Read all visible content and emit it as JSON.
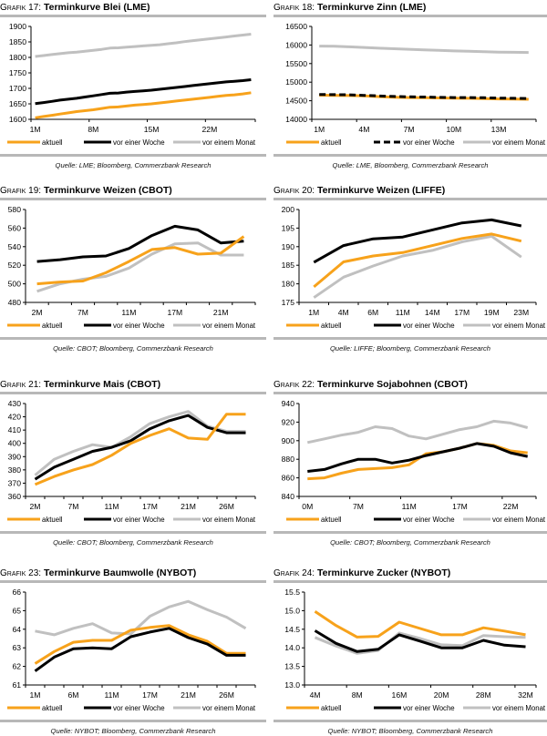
{
  "legend": {
    "aktuell": "aktuell",
    "woche": "vor einer Woche",
    "monat": "vor einem Monat"
  },
  "colors": {
    "aktuell": "#f7a21b",
    "woche": "#000000",
    "monat": "#c0c0c0",
    "rule": "#b8b8b8"
  },
  "chart_data": [
    {
      "id": "g17",
      "type": "line",
      "prefix": "Grafik 17:",
      "title": "Terminkurve Blei (LME)",
      "source": "Quelle: LME; Bloomberg, Commerzbank Research",
      "ylim": [
        1600,
        1900
      ],
      "yticks": [
        1600,
        1650,
        1700,
        1750,
        1800,
        1850,
        1900
      ],
      "n": 27,
      "xtick_labels": [
        {
          "i": 0,
          "label": "1M"
        },
        {
          "i": 7,
          "label": "8M"
        },
        {
          "i": 14,
          "label": "15M"
        },
        {
          "i": 21,
          "label": "22M"
        }
      ],
      "xticks_major_every": 7,
      "series": [
        {
          "key": "monat",
          "name": "vor einem Monat",
          "values": [
            1803,
            1806,
            1809,
            1812,
            1815,
            1817,
            1820,
            1823,
            1826,
            1830,
            1831,
            1833,
            1835,
            1837,
            1839,
            1841,
            1844,
            1847,
            1851,
            1854,
            1857,
            1860,
            1863,
            1866,
            1869,
            1872,
            1875
          ]
        },
        {
          "key": "woche",
          "name": "vor einer Woche",
          "values": [
            1651,
            1654,
            1658,
            1662,
            1665,
            1668,
            1672,
            1676,
            1680,
            1684,
            1685,
            1688,
            1690,
            1692,
            1694,
            1697,
            1700,
            1703,
            1706,
            1709,
            1712,
            1715,
            1718,
            1721,
            1723,
            1725,
            1728
          ]
        },
        {
          "key": "aktuell",
          "name": "aktuell",
          "values": [
            1605,
            1609,
            1613,
            1617,
            1621,
            1625,
            1628,
            1631,
            1635,
            1639,
            1640,
            1643,
            1646,
            1648,
            1650,
            1653,
            1656,
            1659,
            1662,
            1665,
            1668,
            1671,
            1674,
            1677,
            1679,
            1682,
            1686
          ]
        }
      ]
    },
    {
      "id": "g18",
      "type": "line",
      "prefix": "Grafik 18:",
      "title": "Terminkurve Zinn (LME)",
      "source": "Quelle: LME, Bloomberg, Commerzbank Research",
      "ylim": [
        14000,
        16500
      ],
      "yticks": [
        14000,
        14500,
        15000,
        15500,
        16000,
        16500
      ],
      "n": 15,
      "xtick_labels": [
        {
          "i": 0,
          "label": "1M"
        },
        {
          "i": 3,
          "label": "4M"
        },
        {
          "i": 6,
          "label": "7M"
        },
        {
          "i": 9,
          "label": "10M"
        },
        {
          "i": 12,
          "label": "13M"
        }
      ],
      "xticks_major_every": 3,
      "series": [
        {
          "key": "monat",
          "name": "vor einem Monat",
          "values": [
            15970,
            15965,
            15950,
            15935,
            15915,
            15900,
            15885,
            15870,
            15855,
            15840,
            15830,
            15820,
            15810,
            15805,
            15800
          ]
        },
        {
          "key": "aktuell",
          "name": "aktuell",
          "values": [
            14650,
            14645,
            14640,
            14630,
            14610,
            14595,
            14585,
            14580,
            14575,
            14570,
            14565,
            14560,
            14550,
            14545,
            14540
          ]
        },
        {
          "key": "woche",
          "name": "vor einer Woche",
          "dashed": true,
          "values": [
            14670,
            14665,
            14660,
            14645,
            14630,
            14615,
            14605,
            14600,
            14590,
            14585,
            14585,
            14580,
            14570,
            14565,
            14560
          ]
        }
      ]
    },
    {
      "id": "g19",
      "type": "line",
      "prefix": "Grafik 19:",
      "title": "Terminkurve Weizen (CBOT)",
      "source": "Quelle: CBOT; Bloomberg, Commerzbank Research",
      "ylim": [
        480,
        580
      ],
      "yticks": [
        480,
        500,
        520,
        540,
        560,
        580
      ],
      "n": 10,
      "xtick_labels": [
        {
          "i": 0,
          "label": "2M"
        },
        {
          "i": 2,
          "label": "7M"
        },
        {
          "i": 4,
          "label": "11M"
        },
        {
          "i": 6,
          "label": "17M"
        },
        {
          "i": 8,
          "label": "21M"
        }
      ],
      "xticks_major_every": 1,
      "series": [
        {
          "key": "monat",
          "name": "vor einem Monat",
          "values": [
            492,
            500,
            505,
            508,
            517,
            532,
            543,
            544,
            531,
            531
          ]
        },
        {
          "key": "woche",
          "name": "vor einer Woche",
          "values": [
            524,
            526,
            529,
            530,
            538,
            552,
            562,
            558,
            544,
            546
          ]
        },
        {
          "key": "aktuell",
          "name": "aktuell",
          "values": [
            500,
            502,
            503,
            512,
            524,
            537,
            539,
            532,
            533,
            551
          ]
        }
      ]
    },
    {
      "id": "g20",
      "type": "line",
      "prefix": "Grafik 20:",
      "title": "Terminkurve Weizen (LIFFE)",
      "source": "Quelle: LIFFE; Bloomberg, Commerzbank Research",
      "ylim": [
        175,
        200
      ],
      "yticks": [
        175,
        180,
        185,
        190,
        195,
        200
      ],
      "n": 8,
      "xtick_labels": [
        {
          "i": 0,
          "label": "1M"
        },
        {
          "i": 1,
          "label": "4M"
        },
        {
          "i": 2,
          "label": "6M"
        },
        {
          "i": 3,
          "label": "11M"
        },
        {
          "i": 4,
          "label": "14M"
        },
        {
          "i": 5,
          "label": "17M"
        },
        {
          "i": 6,
          "label": "19M"
        },
        {
          "i": 7,
          "label": "23M"
        }
      ],
      "xticks_major_every": 1,
      "series": [
        {
          "key": "monat",
          "name": "vor einem Monat",
          "values": [
            176.3,
            181.8,
            184.8,
            187.5,
            189.0,
            191.3,
            192.8,
            187.2
          ]
        },
        {
          "key": "woche",
          "name": "vor einer Woche",
          "values": [
            185.8,
            190.3,
            192.1,
            192.6,
            194.5,
            196.4,
            197.2,
            195.6
          ]
        },
        {
          "key": "aktuell",
          "name": "aktuell",
          "values": [
            179.2,
            185.9,
            187.5,
            188.4,
            190.3,
            192.2,
            193.4,
            191.5
          ]
        }
      ]
    },
    {
      "id": "g21",
      "type": "line",
      "prefix": "Grafik 21:",
      "title": "Terminkurve Mais (CBOT)",
      "source": "Quelle: CBOT; Bloomberg, Commerzbank Research",
      "ylim": [
        360,
        430
      ],
      "yticks": [
        360,
        370,
        380,
        390,
        400,
        410,
        420,
        430
      ],
      "n": 12,
      "xtick_labels": [
        {
          "i": 0,
          "label": "2M"
        },
        {
          "i": 2,
          "label": "7M"
        },
        {
          "i": 4,
          "label": "11M"
        },
        {
          "i": 6,
          "label": "17M"
        },
        {
          "i": 8,
          "label": "21M"
        },
        {
          "i": 10,
          "label": "26M"
        }
      ],
      "xticks_major_every": 1,
      "series": [
        {
          "key": "monat",
          "name": "vor einem Monat",
          "values": [
            376,
            388,
            394,
            399,
            397,
            405,
            415,
            420,
            424,
            413,
            409,
            409
          ]
        },
        {
          "key": "woche",
          "name": "vor einer Woche",
          "values": [
            373,
            382,
            388,
            394,
            397,
            402,
            411,
            417,
            421,
            412,
            408,
            408
          ]
        },
        {
          "key": "aktuell",
          "name": "aktuell",
          "values": [
            369,
            375,
            380,
            384,
            391,
            400,
            406,
            411,
            404,
            403,
            422,
            422
          ]
        }
      ]
    },
    {
      "id": "g22",
      "type": "line",
      "prefix": "Grafik 22:",
      "title": "Terminkurve Sojabohnen (CBOT)",
      "source": "Quelle: CBOT; Bloomberg, Commerzbank Research",
      "ylim": [
        840,
        940
      ],
      "yticks": [
        840,
        860,
        880,
        900,
        920,
        940
      ],
      "n": 14,
      "xtick_labels": [
        {
          "i": 0,
          "label": "0M"
        },
        {
          "i": 3,
          "label": "7M"
        },
        {
          "i": 6,
          "label": "11M"
        },
        {
          "i": 9,
          "label": "17M"
        },
        {
          "i": 12,
          "label": "22M"
        }
      ],
      "xticks_major_every": 3,
      "series": [
        {
          "key": "monat",
          "name": "vor einem Monat",
          "values": [
            898,
            902,
            906,
            909,
            915,
            913,
            905,
            902,
            907,
            912,
            915,
            921,
            919,
            914
          ]
        },
        {
          "key": "aktuell",
          "name": "aktuell",
          "values": [
            859,
            860,
            865,
            869,
            870,
            871,
            874,
            886,
            888,
            892,
            897,
            895,
            889,
            887
          ]
        },
        {
          "key": "woche",
          "name": "vor einer Woche",
          "values": [
            867,
            869,
            875,
            880,
            880,
            876,
            879,
            884,
            888,
            892,
            897,
            894,
            887,
            883
          ]
        }
      ]
    },
    {
      "id": "g23",
      "type": "line",
      "prefix": "Grafik 23:",
      "title": "Terminkurve Baumwolle (NYBOT)",
      "source": "Quelle: NYBOT; Bloomberg, Commerzbank Research",
      "ylim": [
        61,
        66
      ],
      "yticks": [
        61,
        62,
        63,
        64,
        65,
        66
      ],
      "n": 12,
      "xtick_labels": [
        {
          "i": 0,
          "label": "1M"
        },
        {
          "i": 2,
          "label": "6M"
        },
        {
          "i": 4,
          "label": "11M"
        },
        {
          "i": 6,
          "label": "17M"
        },
        {
          "i": 8,
          "label": "21M"
        },
        {
          "i": 10,
          "label": "26M"
        }
      ],
      "xticks_major_every": 1,
      "series": [
        {
          "key": "monat",
          "name": "vor einem Monat",
          "values": [
            63.9,
            63.7,
            64.05,
            64.3,
            63.8,
            63.75,
            64.7,
            65.2,
            65.5,
            65.05,
            64.65,
            64.05
          ]
        },
        {
          "key": "aktuell",
          "name": "aktuell",
          "values": [
            62.15,
            62.8,
            63.3,
            63.4,
            63.4,
            63.95,
            64.1,
            64.2,
            63.7,
            63.35,
            62.7,
            62.7
          ]
        },
        {
          "key": "woche",
          "name": "vor einer Woche",
          "values": [
            61.75,
            62.5,
            62.95,
            63.0,
            62.95,
            63.6,
            63.85,
            64.05,
            63.55,
            63.2,
            62.6,
            62.6
          ]
        }
      ]
    },
    {
      "id": "g24",
      "type": "line",
      "prefix": "Grafik 24:",
      "title": "Terminkurve Zucker (NYBOT)",
      "source": "Quelle: NYBOT; Bloomberg, Commerzbank Research",
      "ylim": [
        13.0,
        15.5
      ],
      "yticks": [
        "13.0",
        "13.5",
        "14.0",
        "14.5",
        "15.0",
        "15.5"
      ],
      "n": 11,
      "xtick_labels": [
        {
          "i": 0,
          "label": "4M"
        },
        {
          "i": 2,
          "label": "8M"
        },
        {
          "i": 4,
          "label": "16M"
        },
        {
          "i": 6,
          "label": "20M"
        },
        {
          "i": 8,
          "label": "28M"
        },
        {
          "i": 10,
          "label": "32M"
        }
      ],
      "xticks_major_every": 2,
      "series": [
        {
          "key": "monat",
          "name": "vor einem Monat",
          "values": [
            14.28,
            14.05,
            13.85,
            13.93,
            14.4,
            14.25,
            14.08,
            14.06,
            14.33,
            14.3,
            14.28
          ]
        },
        {
          "key": "woche",
          "name": "vor einer Woche",
          "values": [
            14.46,
            14.12,
            13.9,
            13.96,
            14.35,
            14.18,
            14.0,
            14.0,
            14.2,
            14.07,
            14.03
          ]
        },
        {
          "key": "aktuell",
          "name": "aktuell",
          "values": [
            14.98,
            14.6,
            14.29,
            14.31,
            14.69,
            14.52,
            14.35,
            14.35,
            14.54,
            14.45,
            14.35
          ]
        }
      ]
    }
  ]
}
